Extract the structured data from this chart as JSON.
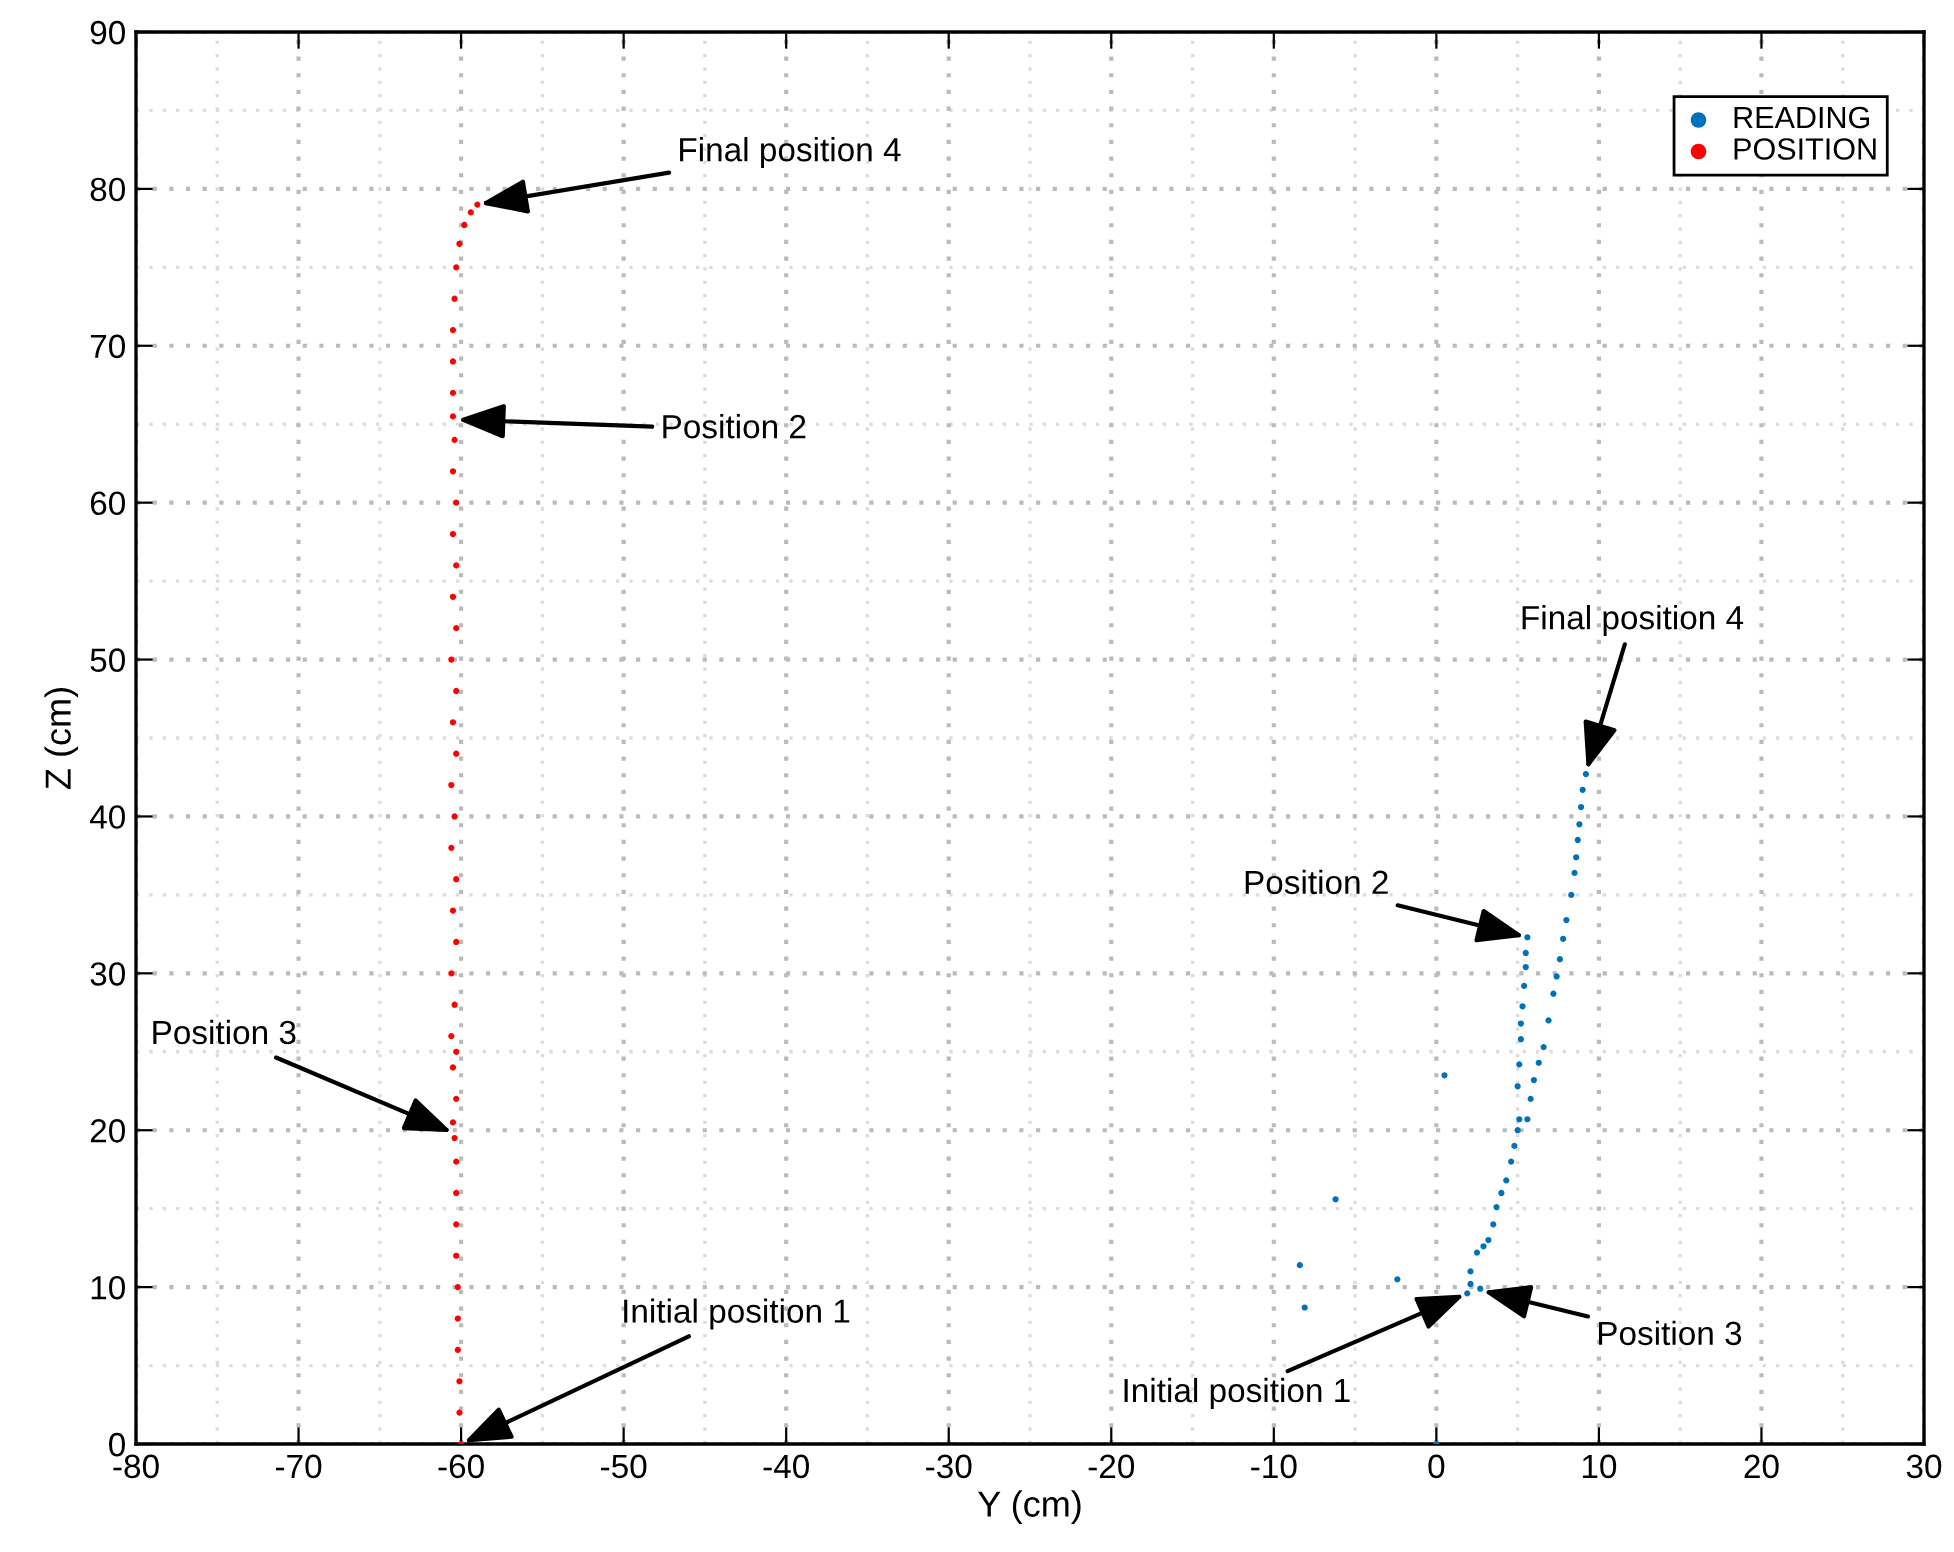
{
  "chart_data": {
    "type": "scatter",
    "xlabel": "Y (cm)",
    "ylabel": "Z (cm)",
    "xlim": [
      -80,
      30
    ],
    "ylim": [
      0,
      90
    ],
    "xticks": [
      -80,
      -70,
      -60,
      -50,
      -40,
      -30,
      -20,
      -10,
      0,
      10,
      20,
      30
    ],
    "yticks": [
      0,
      10,
      20,
      30,
      40,
      50,
      60,
      70,
      80,
      90
    ],
    "grid": true,
    "legend": "top right",
    "marker": "circle",
    "series": [
      {
        "name": "READING",
        "color": "#0072bd",
        "x": [
          0,
          -8.4,
          -8.1,
          -6.2,
          -2.4,
          0.5,
          1.9,
          2.1,
          2.7,
          2.1,
          2.5,
          2.9,
          3.2,
          3.5,
          3.7,
          4.0,
          4.3,
          4.6,
          4.8,
          5.0,
          5.1,
          5.0,
          5.1,
          5.2,
          5.2,
          5.3,
          5.4,
          5.5,
          5.5,
          5.6,
          5.6,
          5.8,
          6.0,
          6.3,
          6.6,
          6.9,
          7.2,
          7.4,
          7.6,
          7.8,
          8.0,
          8.3,
          8.5,
          8.6,
          8.7,
          8.8,
          8.9,
          9.0,
          9.2
        ],
        "values": [
          0,
          11.4,
          8.7,
          15.6,
          10.5,
          23.5,
          9.6,
          11.0,
          9.9,
          10.2,
          12.2,
          12.6,
          13.0,
          14.0,
          15.1,
          16.0,
          16.8,
          18.0,
          19.0,
          20.0,
          20.7,
          22.8,
          24.2,
          25.8,
          26.8,
          27.9,
          29.2,
          30.4,
          31.3,
          32.3,
          20.7,
          22.0,
          23.2,
          24.3,
          25.3,
          27.0,
          28.7,
          29.8,
          30.9,
          32.2,
          33.4,
          35.0,
          36.4,
          37.4,
          38.5,
          39.5,
          40.6,
          41.7,
          42.7
        ]
      },
      {
        "name": "POSITION",
        "color": "#ff0000",
        "x": [
          -60.0,
          -60.1,
          -60.1,
          -60.2,
          -60.2,
          -60.2,
          -60.3,
          -60.3,
          -60.3,
          -60.3,
          -60.4,
          -60.5,
          -60.3,
          -60.5,
          -60.3,
          -60.6,
          -60.4,
          -60.6,
          -60.3,
          -60.5,
          -60.3,
          -60.6,
          -60.4,
          -60.6,
          -60.3,
          -60.5,
          -60.3,
          -60.6,
          -60.3,
          -60.5,
          -60.3,
          -60.5,
          -60.3,
          -60.5,
          -60.4,
          -60.5,
          -60.5,
          -60.5,
          -60.5,
          -60.4,
          -60.3,
          -60.1,
          -59.8,
          -59.4,
          -59.0
        ],
        "values": [
          0,
          2,
          4,
          6,
          8,
          10,
          12,
          14,
          16,
          18,
          19.5,
          20.5,
          22,
          24,
          25,
          26,
          28,
          30,
          32,
          34,
          36,
          38,
          40,
          42,
          44,
          46,
          48,
          50,
          52,
          54,
          56,
          58,
          60,
          62,
          64,
          65.5,
          67,
          69,
          71,
          73,
          75,
          76.5,
          77.7,
          78.5,
          79
        ]
      }
    ],
    "annotations": [
      {
        "text": "Final position 4",
        "x": -59,
        "y": 79
      },
      {
        "text": "Position 2",
        "x": -60.4,
        "y": 65.3
      },
      {
        "text": "Position 3",
        "x": -60.4,
        "y": 19.8
      },
      {
        "text": "Initial position 1",
        "x": -60,
        "y": 0
      },
      {
        "text": "Final position 4",
        "x": 9.2,
        "y": 42.8
      },
      {
        "text": "Position 2",
        "x": 5.6,
        "y": 32.3
      },
      {
        "text": "Position 3",
        "x": 2.7,
        "y": 9.8
      },
      {
        "text": "Initial position 1",
        "x": 1.9,
        "y": 9.6
      }
    ]
  }
}
